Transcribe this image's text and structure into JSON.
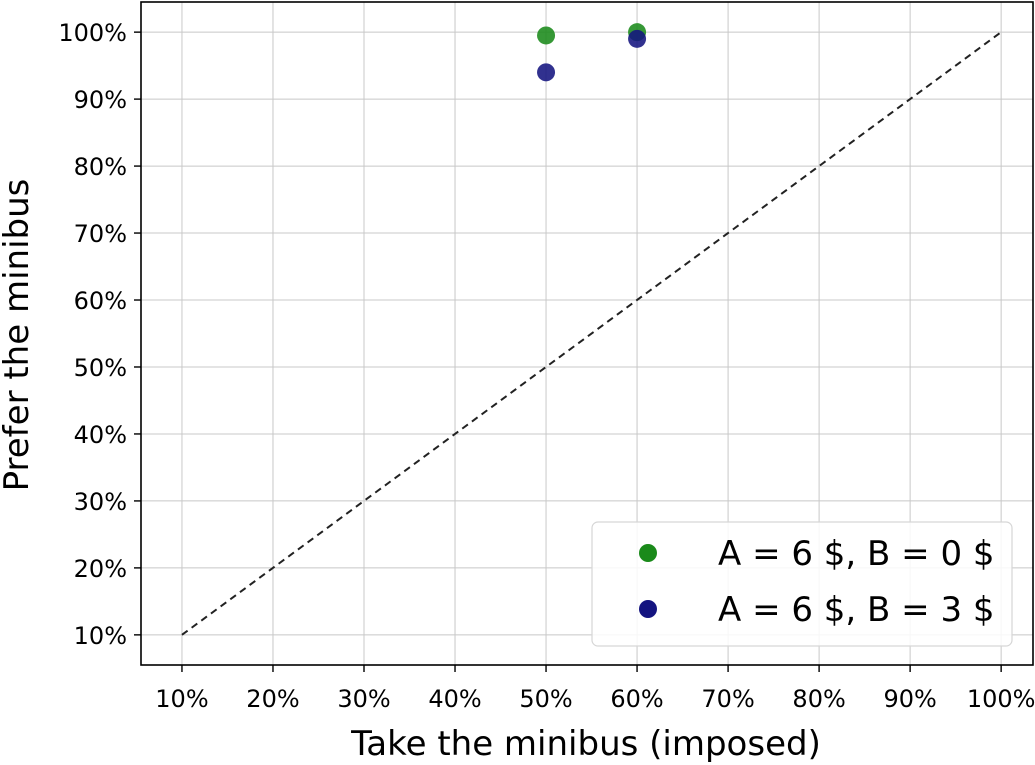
{
  "chart_data": {
    "type": "scatter",
    "title": "",
    "xlabel": "Take the minibus (imposed)",
    "ylabel": "Prefer the minibus",
    "xlim": [
      5.5,
      103.5
    ],
    "ylim": [
      5.5,
      104.5
    ],
    "xticks": [
      10,
      20,
      30,
      40,
      50,
      60,
      70,
      80,
      90,
      100
    ],
    "yticks": [
      10,
      20,
      30,
      40,
      50,
      60,
      70,
      80,
      90,
      100
    ],
    "xtick_labels": [
      "10%",
      "20%",
      "30%",
      "40%",
      "50%",
      "60%",
      "70%",
      "80%",
      "90%",
      "100%"
    ],
    "ytick_labels": [
      "10%",
      "20%",
      "30%",
      "40%",
      "50%",
      "60%",
      "70%",
      "80%",
      "90%",
      "100%"
    ],
    "grid": true,
    "reference_line": {
      "style": "dashed",
      "color": "#222222",
      "points": [
        [
          10,
          10
        ],
        [
          100,
          100
        ]
      ]
    },
    "series": [
      {
        "name": "A = 6 $, B = 0 $",
        "color": "#1a8a1a",
        "points": [
          [
            50,
            99.5
          ],
          [
            60,
            100
          ]
        ]
      },
      {
        "name": "A = 6 $, B = 3 $",
        "color": "#141480",
        "points": [
          [
            50,
            94
          ],
          [
            60,
            99
          ]
        ]
      }
    ],
    "legend": {
      "position": "lower-right"
    }
  }
}
